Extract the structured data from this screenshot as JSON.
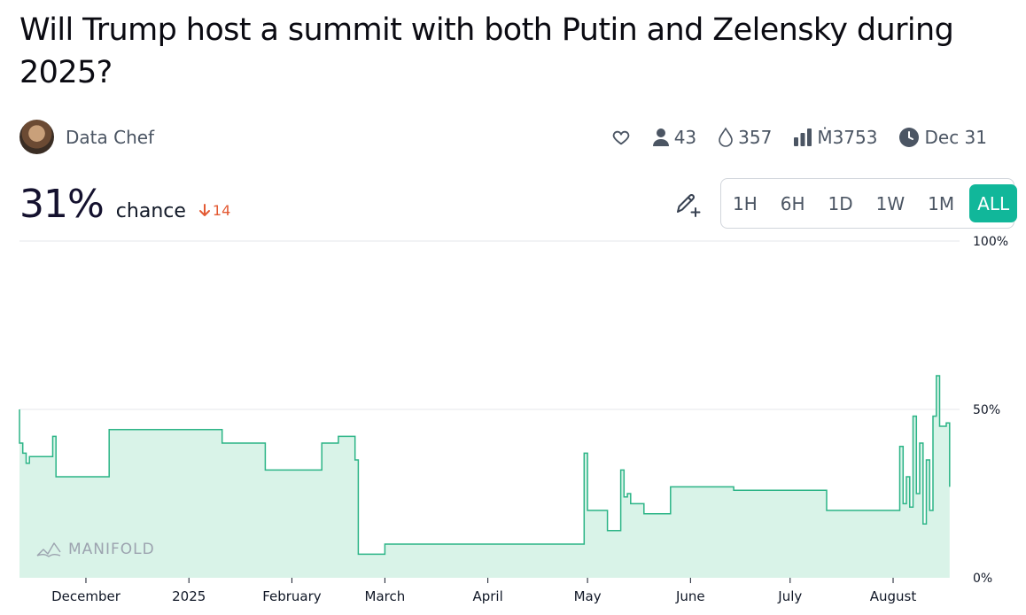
{
  "market": {
    "title": "Will Trump host a summit with both Putin and Zelensky during 2025?",
    "author": "Data Chef",
    "stats": {
      "traders": "43",
      "liquidity": "357",
      "volume": "Ṁ3753",
      "close_date": "Dec 31"
    },
    "probability": "31%",
    "probability_label": "chance",
    "change": "14"
  },
  "time_ranges": [
    "1H",
    "6H",
    "1D",
    "1W",
    "1M",
    "ALL"
  ],
  "active_range": "ALL",
  "watermark": "MANIFOLD",
  "icons": {
    "like": "heart-icon",
    "traders": "user-icon",
    "liquidity": "droplet-icon",
    "volume": "bar-chart-icon",
    "close": "clock-icon",
    "edit": "pencil-plus-icon",
    "change": "arrow-down-icon",
    "brand": "manifold-logo-icon"
  },
  "colors": {
    "accent": "#11b79a",
    "line": "#2bb486",
    "fill": "#d9f3e8",
    "negative": "#e35a33"
  },
  "chart_data": {
    "type": "area",
    "ylim": [
      0,
      100
    ],
    "y_ticks": [
      "100%",
      "50%",
      "0%"
    ],
    "y_tick_values": [
      100,
      50,
      0
    ],
    "x_ticks": [
      "December",
      "2025",
      "February",
      "March",
      "April",
      "May",
      "June",
      "July",
      "August"
    ],
    "x_tick_dates": [
      "2024-12-01",
      "2025-01-01",
      "2025-02-01",
      "2025-03-01",
      "2025-04-01",
      "2025-05-01",
      "2025-06-01",
      "2025-07-01",
      "2025-08-01"
    ],
    "xlim": [
      "2024-11-11",
      "2025-08-20"
    ],
    "points": [
      [
        "2024-11-11",
        50
      ],
      [
        "2024-11-11",
        40
      ],
      [
        "2024-11-12",
        37
      ],
      [
        "2024-11-13",
        34
      ],
      [
        "2024-11-14",
        36
      ],
      [
        "2024-11-21",
        36
      ],
      [
        "2024-11-21",
        42
      ],
      [
        "2024-11-22",
        42
      ],
      [
        "2024-11-22",
        30
      ],
      [
        "2024-12-07",
        30
      ],
      [
        "2024-12-08",
        44
      ],
      [
        "2025-01-10",
        44
      ],
      [
        "2025-01-11",
        40
      ],
      [
        "2025-01-23",
        40
      ],
      [
        "2025-01-24",
        32
      ],
      [
        "2025-02-10",
        32
      ],
      [
        "2025-02-10",
        40
      ],
      [
        "2025-02-14",
        40
      ],
      [
        "2025-02-15",
        42
      ],
      [
        "2025-02-20",
        42
      ],
      [
        "2025-02-20",
        35
      ],
      [
        "2025-02-21",
        7
      ],
      [
        "2025-03-01",
        7
      ],
      [
        "2025-03-01",
        10
      ],
      [
        "2025-04-30",
        10
      ],
      [
        "2025-04-30",
        37
      ],
      [
        "2025-05-01",
        20
      ],
      [
        "2025-05-07",
        20
      ],
      [
        "2025-05-07",
        14
      ],
      [
        "2025-05-11",
        14
      ],
      [
        "2025-05-11",
        32
      ],
      [
        "2025-05-12",
        24
      ],
      [
        "2025-05-13",
        25
      ],
      [
        "2025-05-14",
        22
      ],
      [
        "2025-05-18",
        22
      ],
      [
        "2025-05-18",
        19
      ],
      [
        "2025-05-26",
        19
      ],
      [
        "2025-05-26",
        27
      ],
      [
        "2025-06-13",
        27
      ],
      [
        "2025-06-14",
        26
      ],
      [
        "2025-07-12",
        26
      ],
      [
        "2025-07-12",
        20
      ],
      [
        "2025-08-03",
        20
      ],
      [
        "2025-08-03",
        39
      ],
      [
        "2025-08-04",
        22
      ],
      [
        "2025-08-05",
        30
      ],
      [
        "2025-08-06",
        21
      ],
      [
        "2025-08-07",
        48
      ],
      [
        "2025-08-08",
        25
      ],
      [
        "2025-08-09",
        40
      ],
      [
        "2025-08-10",
        16
      ],
      [
        "2025-08-11",
        35
      ],
      [
        "2025-08-12",
        20
      ],
      [
        "2025-08-13",
        48
      ],
      [
        "2025-08-14",
        60
      ],
      [
        "2025-08-15",
        45
      ],
      [
        "2025-08-17",
        46
      ],
      [
        "2025-08-18",
        27
      ],
      [
        "2025-08-18",
        31
      ]
    ]
  }
}
